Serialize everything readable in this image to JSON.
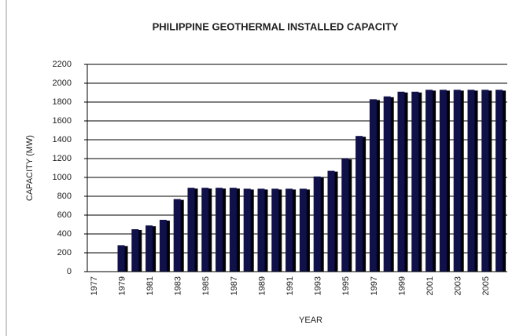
{
  "chart_data": {
    "type": "bar",
    "title": "PHILIPPINE GEOTHERMAL INSTALLED CAPACITY",
    "x_label": "YEAR",
    "y_label": "CAPACITY (MW)",
    "categories": [
      "1977",
      null,
      "1979",
      null,
      "1981",
      null,
      "1983",
      null,
      "1985",
      null,
      "1987",
      null,
      "1989",
      null,
      "1991",
      null,
      "1993",
      null,
      "1995",
      null,
      "1997",
      null,
      "1999",
      null,
      "2001",
      null,
      "2003",
      null,
      "2005",
      null
    ],
    "values": [
      0,
      0,
      280,
      450,
      490,
      550,
      770,
      890,
      890,
      890,
      890,
      880,
      880,
      880,
      880,
      880,
      1010,
      1070,
      1200,
      1440,
      1830,
      1860,
      1910,
      1910,
      1930,
      1930,
      1930,
      1930,
      1930,
      1930
    ],
    "color": "#10104a",
    "ylim": [
      0,
      2200
    ],
    "yticks": [
      0,
      200,
      400,
      600,
      800,
      1000,
      1200,
      1400,
      1600,
      1800,
      2000,
      2200
    ],
    "grid": true
  }
}
